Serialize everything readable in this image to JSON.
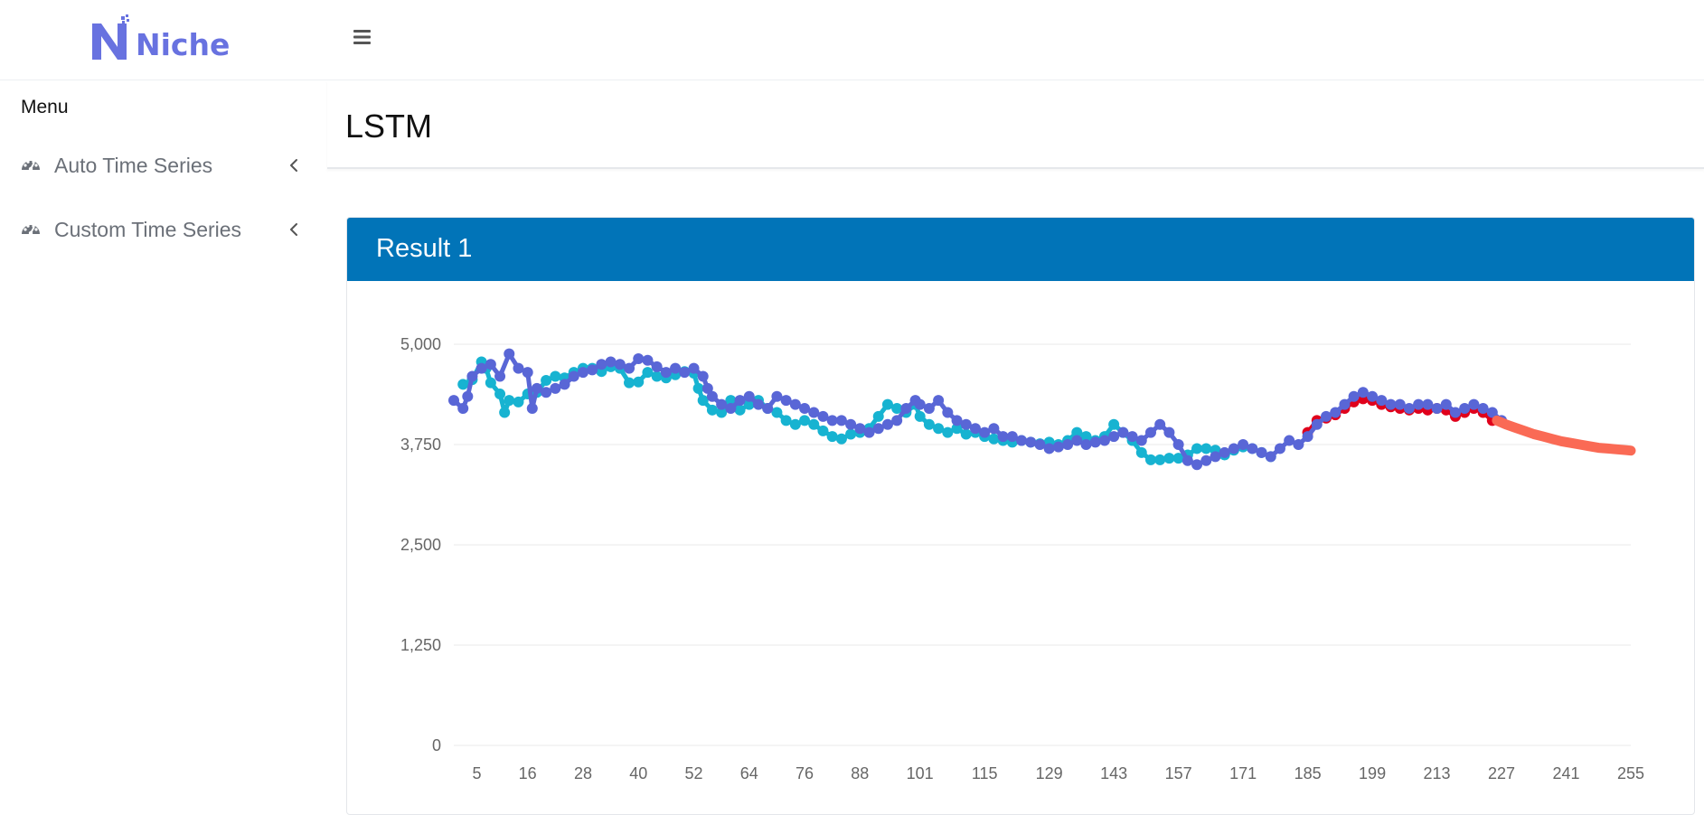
{
  "brand": {
    "name": "Niche",
    "logo_color": "#6872e0"
  },
  "header": {
    "menu_icon": "hamburger-icon"
  },
  "sidebar": {
    "title": "Menu",
    "items": [
      {
        "label": "Auto Time Series",
        "icon": "gauge-icon"
      },
      {
        "label": "Custom Time Series",
        "icon": "gauge-icon"
      }
    ]
  },
  "page": {
    "title": "LSTM"
  },
  "card": {
    "title": "Result 1",
    "header_color": "#0174b8"
  },
  "chart_data": {
    "type": "line",
    "title": "",
    "xlabel": "",
    "ylabel": "",
    "x_ticks": [
      5,
      16,
      28,
      40,
      52,
      64,
      76,
      88,
      101,
      115,
      129,
      143,
      157,
      171,
      185,
      199,
      213,
      227,
      241,
      255
    ],
    "y_ticks": [
      "0",
      "1,250",
      "2,500",
      "3,750",
      "5,000"
    ],
    "xlim": [
      0,
      255
    ],
    "ylim": [
      0,
      5000
    ],
    "grid": true,
    "series": [
      {
        "color": "#17b3d1",
        "points": [
          [
            2,
            4500
          ],
          [
            4,
            4560
          ],
          [
            6,
            4780
          ],
          [
            7,
            4700
          ],
          [
            8,
            4520
          ],
          [
            10,
            4380
          ],
          [
            11,
            4150
          ],
          [
            12,
            4300
          ],
          [
            14,
            4280
          ],
          [
            16,
            4380
          ],
          [
            18,
            4400
          ],
          [
            20,
            4550
          ],
          [
            22,
            4600
          ],
          [
            24,
            4580
          ],
          [
            26,
            4650
          ],
          [
            28,
            4700
          ],
          [
            30,
            4700
          ],
          [
            32,
            4660
          ],
          [
            34,
            4720
          ],
          [
            36,
            4700
          ],
          [
            38,
            4520
          ],
          [
            40,
            4530
          ],
          [
            42,
            4650
          ],
          [
            44,
            4600
          ],
          [
            46,
            4580
          ],
          [
            48,
            4620
          ],
          [
            50,
            4660
          ],
          [
            52,
            4640
          ],
          [
            53,
            4450
          ],
          [
            54,
            4300
          ],
          [
            56,
            4180
          ],
          [
            58,
            4150
          ],
          [
            60,
            4300
          ],
          [
            62,
            4180
          ],
          [
            64,
            4250
          ],
          [
            66,
            4300
          ],
          [
            68,
            4200
          ],
          [
            70,
            4150
          ],
          [
            72,
            4050
          ],
          [
            74,
            4000
          ],
          [
            76,
            4050
          ],
          [
            78,
            4000
          ],
          [
            80,
            3920
          ],
          [
            82,
            3850
          ],
          [
            84,
            3820
          ],
          [
            86,
            3880
          ],
          [
            88,
            3900
          ],
          [
            90,
            3950
          ],
          [
            92,
            4100
          ],
          [
            94,
            4250
          ],
          [
            96,
            4200
          ],
          [
            98,
            4150
          ],
          [
            100,
            4250
          ],
          [
            101,
            4100
          ],
          [
            103,
            4000
          ],
          [
            105,
            3950
          ],
          [
            107,
            3900
          ],
          [
            109,
            3950
          ],
          [
            111,
            3880
          ],
          [
            113,
            3900
          ],
          [
            115,
            3850
          ],
          [
            117,
            3820
          ],
          [
            119,
            3800
          ],
          [
            121,
            3780
          ],
          [
            123,
            3800
          ],
          [
            125,
            3780
          ],
          [
            127,
            3760
          ],
          [
            129,
            3780
          ],
          [
            131,
            3750
          ],
          [
            133,
            3800
          ],
          [
            135,
            3900
          ],
          [
            137,
            3850
          ],
          [
            139,
            3800
          ],
          [
            141,
            3850
          ],
          [
            143,
            4000
          ],
          [
            145,
            3900
          ],
          [
            147,
            3800
          ],
          [
            149,
            3650
          ],
          [
            151,
            3560
          ],
          [
            153,
            3560
          ],
          [
            155,
            3580
          ],
          [
            157,
            3580
          ],
          [
            159,
            3620
          ],
          [
            161,
            3700
          ],
          [
            163,
            3700
          ],
          [
            165,
            3680
          ],
          [
            167,
            3620
          ],
          [
            169,
            3680
          ],
          [
            171,
            3720
          ],
          [
            173,
            3700
          ],
          [
            175,
            3650
          ],
          [
            177,
            3600
          ]
        ]
      },
      {
        "color": "#e0001b",
        "points": [
          [
            185,
            3900
          ],
          [
            187,
            4050
          ],
          [
            189,
            4080
          ],
          [
            191,
            4120
          ],
          [
            193,
            4200
          ],
          [
            195,
            4280
          ],
          [
            197,
            4320
          ],
          [
            199,
            4300
          ],
          [
            201,
            4250
          ],
          [
            203,
            4220
          ],
          [
            205,
            4200
          ],
          [
            207,
            4180
          ],
          [
            209,
            4200
          ],
          [
            211,
            4180
          ],
          [
            213,
            4200
          ],
          [
            215,
            4180
          ],
          [
            217,
            4100
          ],
          [
            219,
            4150
          ],
          [
            221,
            4200
          ],
          [
            223,
            4150
          ],
          [
            225,
            4050
          ]
        ]
      },
      {
        "color": "#5966d6",
        "points": [
          [
            0,
            4300
          ],
          [
            2,
            4200
          ],
          [
            3,
            4350
          ],
          [
            4,
            4600
          ],
          [
            6,
            4700
          ],
          [
            8,
            4750
          ],
          [
            10,
            4600
          ],
          [
            12,
            4880
          ],
          [
            14,
            4700
          ],
          [
            16,
            4650
          ],
          [
            17,
            4200
          ],
          [
            18,
            4450
          ],
          [
            20,
            4400
          ],
          [
            22,
            4450
          ],
          [
            24,
            4500
          ],
          [
            26,
            4600
          ],
          [
            28,
            4650
          ],
          [
            30,
            4680
          ],
          [
            32,
            4750
          ],
          [
            34,
            4780
          ],
          [
            36,
            4750
          ],
          [
            38,
            4700
          ],
          [
            40,
            4820
          ],
          [
            42,
            4800
          ],
          [
            44,
            4720
          ],
          [
            46,
            4650
          ],
          [
            48,
            4700
          ],
          [
            50,
            4650
          ],
          [
            52,
            4700
          ],
          [
            54,
            4600
          ],
          [
            55,
            4450
          ],
          [
            56,
            4350
          ],
          [
            58,
            4250
          ],
          [
            60,
            4200
          ],
          [
            62,
            4300
          ],
          [
            64,
            4350
          ],
          [
            66,
            4250
          ],
          [
            68,
            4200
          ],
          [
            70,
            4350
          ],
          [
            72,
            4300
          ],
          [
            74,
            4250
          ],
          [
            76,
            4200
          ],
          [
            78,
            4150
          ],
          [
            80,
            4100
          ],
          [
            82,
            4050
          ],
          [
            84,
            4050
          ],
          [
            86,
            4000
          ],
          [
            88,
            3950
          ],
          [
            90,
            3900
          ],
          [
            92,
            3950
          ],
          [
            94,
            4000
          ],
          [
            96,
            4050
          ],
          [
            98,
            4200
          ],
          [
            100,
            4300
          ],
          [
            101,
            4250
          ],
          [
            103,
            4200
          ],
          [
            105,
            4300
          ],
          [
            107,
            4150
          ],
          [
            109,
            4050
          ],
          [
            111,
            4000
          ],
          [
            113,
            3950
          ],
          [
            115,
            3900
          ],
          [
            117,
            3950
          ],
          [
            119,
            3850
          ],
          [
            121,
            3850
          ],
          [
            123,
            3800
          ],
          [
            125,
            3780
          ],
          [
            127,
            3750
          ],
          [
            129,
            3700
          ],
          [
            131,
            3720
          ],
          [
            133,
            3750
          ],
          [
            135,
            3800
          ],
          [
            137,
            3750
          ],
          [
            139,
            3780
          ],
          [
            141,
            3800
          ],
          [
            143,
            3850
          ],
          [
            145,
            3900
          ],
          [
            147,
            3850
          ],
          [
            149,
            3800
          ],
          [
            151,
            3900
          ],
          [
            153,
            4000
          ],
          [
            155,
            3900
          ],
          [
            157,
            3750
          ],
          [
            159,
            3550
          ],
          [
            161,
            3500
          ],
          [
            163,
            3550
          ],
          [
            165,
            3600
          ],
          [
            167,
            3650
          ],
          [
            169,
            3700
          ],
          [
            171,
            3750
          ],
          [
            173,
            3700
          ],
          [
            175,
            3650
          ],
          [
            177,
            3600
          ],
          [
            179,
            3700
          ],
          [
            181,
            3800
          ],
          [
            183,
            3750
          ],
          [
            185,
            3850
          ],
          [
            187,
            4000
          ],
          [
            189,
            4100
          ],
          [
            191,
            4150
          ],
          [
            193,
            4250
          ],
          [
            195,
            4350
          ],
          [
            197,
            4400
          ],
          [
            199,
            4350
          ],
          [
            201,
            4300
          ],
          [
            203,
            4250
          ],
          [
            205,
            4250
          ],
          [
            207,
            4200
          ],
          [
            209,
            4250
          ],
          [
            211,
            4250
          ],
          [
            213,
            4200
          ],
          [
            215,
            4250
          ],
          [
            217,
            4150
          ],
          [
            219,
            4200
          ],
          [
            221,
            4250
          ],
          [
            223,
            4200
          ],
          [
            225,
            4150
          ],
          [
            227,
            4050
          ]
        ]
      },
      {
        "color": "#fa6a55",
        "points": [
          [
            226,
            4050
          ],
          [
            228,
            4000
          ],
          [
            230,
            3960
          ],
          [
            232,
            3920
          ],
          [
            234,
            3880
          ],
          [
            236,
            3850
          ],
          [
            238,
            3820
          ],
          [
            240,
            3790
          ],
          [
            242,
            3770
          ],
          [
            244,
            3750
          ],
          [
            246,
            3730
          ],
          [
            248,
            3710
          ],
          [
            250,
            3700
          ],
          [
            252,
            3690
          ],
          [
            254,
            3680
          ],
          [
            255,
            3675
          ]
        ]
      }
    ]
  }
}
